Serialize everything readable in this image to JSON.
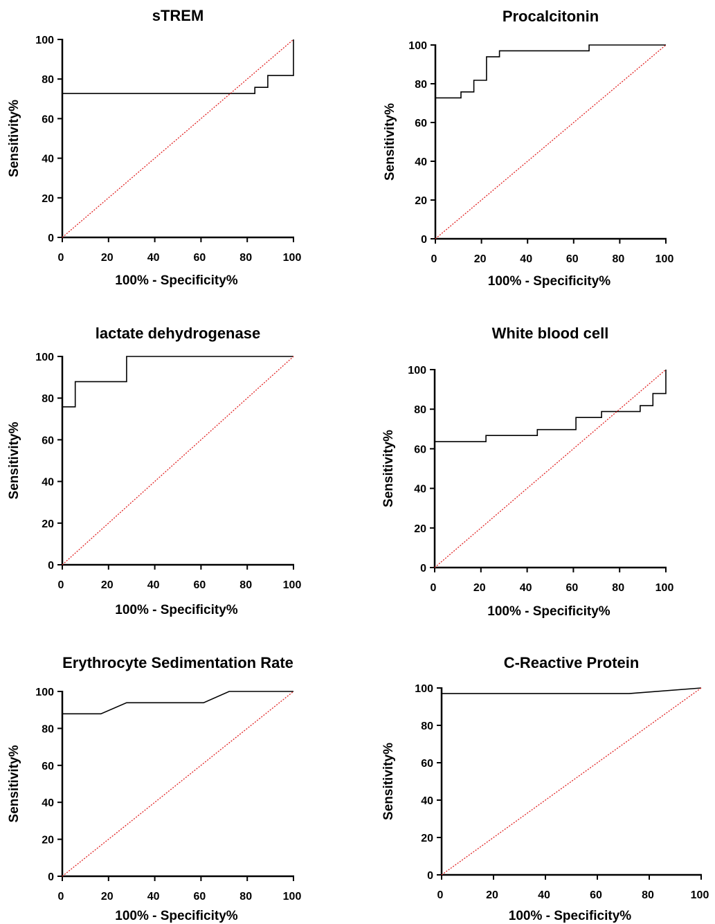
{
  "chart_data": [
    {
      "type": "line",
      "title": "sTREM",
      "xlabel": "100% - Specificity%",
      "ylabel": "Sensitivity%",
      "xlim": [
        0,
        100
      ],
      "ylim": [
        0,
        100
      ],
      "xticks": [
        "0",
        "20",
        "40",
        "60",
        "80",
        "100"
      ],
      "yticks": [
        "0",
        "20",
        "40",
        "60",
        "80",
        "100"
      ],
      "grid": false,
      "series": [
        {
          "x": [
            0,
            83.3,
            83.3,
            88.9,
            88.9,
            100,
            100
          ],
          "y": [
            72.7,
            72.7,
            75.8,
            75.8,
            81.8,
            81.8,
            100
          ],
          "color": "#000000"
        },
        {
          "x": [
            0,
            100
          ],
          "y": [
            0,
            100
          ],
          "color": "#e02020",
          "style": "dotted"
        }
      ]
    },
    {
      "type": "line",
      "title": "Procalcitonin",
      "xlabel": "100% - Specificity%",
      "ylabel": "Sensitivity%",
      "xlim": [
        0,
        100
      ],
      "ylim": [
        0,
        100
      ],
      "xticks": [
        "0",
        "20",
        "40",
        "60",
        "80",
        "100"
      ],
      "yticks": [
        "0",
        "20",
        "40",
        "60",
        "80",
        "100"
      ],
      "grid": false,
      "series": [
        {
          "x": [
            0,
            11.1,
            11.1,
            16.7,
            16.7,
            22.2,
            22.2,
            27.8,
            27.8,
            66.7,
            66.7,
            100
          ],
          "y": [
            72.7,
            72.7,
            75.8,
            75.8,
            81.8,
            81.8,
            93.9,
            93.9,
            97.0,
            97.0,
            100,
            100
          ],
          "color": "#000000"
        },
        {
          "x": [
            0,
            100
          ],
          "y": [
            0,
            100
          ],
          "color": "#e02020",
          "style": "dotted"
        }
      ]
    },
    {
      "type": "line",
      "title": "lactate dehydrogenase",
      "xlabel": "100% - Specificity%",
      "ylabel": "Sensitivity%",
      "xlim": [
        0,
        100
      ],
      "ylim": [
        0,
        100
      ],
      "xticks": [
        "0",
        "20",
        "40",
        "60",
        "80",
        "100"
      ],
      "yticks": [
        "0",
        "20",
        "40",
        "60",
        "80",
        "100"
      ],
      "grid": false,
      "series": [
        {
          "x": [
            0,
            5.6,
            5.6,
            27.8,
            27.8,
            100
          ],
          "y": [
            75.8,
            75.8,
            87.9,
            87.9,
            100,
            100
          ],
          "color": "#000000"
        },
        {
          "x": [
            0,
            100
          ],
          "y": [
            0,
            100
          ],
          "color": "#e02020",
          "style": "dotted"
        }
      ]
    },
    {
      "type": "line",
      "title": "White blood cell",
      "xlabel": "100% - Specificity%",
      "ylabel": "Sensitivity%",
      "xlim": [
        0,
        100
      ],
      "ylim": [
        0,
        100
      ],
      "xticks": [
        "0",
        "20",
        "40",
        "60",
        "80",
        "100"
      ],
      "yticks": [
        "0",
        "20",
        "40",
        "60",
        "80",
        "100"
      ],
      "grid": false,
      "series": [
        {
          "x": [
            0,
            22.2,
            22.2,
            44.4,
            44.4,
            61.1,
            61.1,
            72.2,
            72.2,
            88.9,
            88.9,
            94.4,
            94.4,
            100,
            100
          ],
          "y": [
            63.6,
            63.6,
            66.7,
            66.7,
            69.7,
            69.7,
            75.8,
            75.8,
            78.8,
            78.8,
            81.8,
            81.8,
            87.9,
            87.9,
            100
          ],
          "color": "#000000"
        },
        {
          "x": [
            0,
            100
          ],
          "y": [
            0,
            100
          ],
          "color": "#e02020",
          "style": "dotted"
        }
      ]
    },
    {
      "type": "line",
      "title": "Erythrocyte Sedimentation Rate",
      "xlabel": "100% - Specificity%",
      "ylabel": "Sensitivity%",
      "xlim": [
        0,
        100
      ],
      "ylim": [
        0,
        100
      ],
      "xticks": [
        "0",
        "20",
        "40",
        "60",
        "80",
        "100"
      ],
      "yticks": [
        "0",
        "20",
        "40",
        "60",
        "80",
        "100"
      ],
      "grid": false,
      "series": [
        {
          "x": [
            0,
            16.7,
            27.8,
            61.1,
            72.2,
            100
          ],
          "y": [
            87.9,
            87.9,
            93.9,
            93.9,
            100,
            100
          ],
          "color": "#000000"
        },
        {
          "x": [
            0,
            100
          ],
          "y": [
            0,
            100
          ],
          "color": "#e02020",
          "style": "dotted"
        }
      ]
    },
    {
      "type": "line",
      "title": "C-Reactive Protein",
      "xlabel": "100% - Specificity%",
      "ylabel": "Sensitivity%",
      "xlim": [
        0,
        100
      ],
      "ylim": [
        0,
        100
      ],
      "xticks": [
        "0",
        "20",
        "40",
        "60",
        "80",
        "100"
      ],
      "yticks": [
        "0",
        "20",
        "40",
        "60",
        "80",
        "100"
      ],
      "grid": false,
      "series": [
        {
          "x": [
            0,
            72.2,
            100
          ],
          "y": [
            97.0,
            97.0,
            100
          ],
          "color": "#000000"
        },
        {
          "x": [
            0,
            100
          ],
          "y": [
            0,
            100
          ],
          "color": "#e02020",
          "style": "dotted"
        }
      ]
    }
  ]
}
